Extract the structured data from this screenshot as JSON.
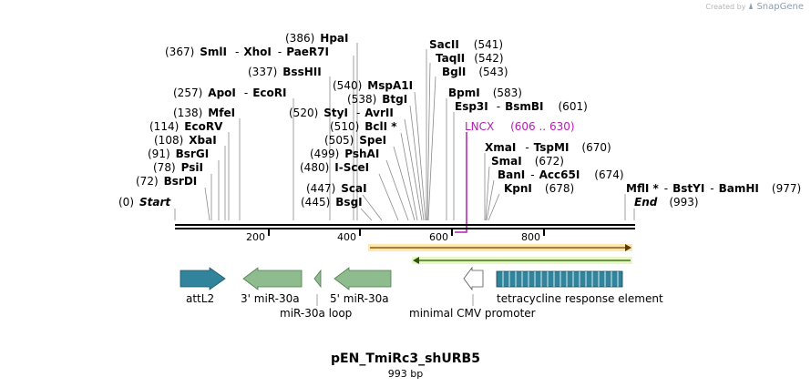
{
  "watermark": {
    "prefix": "Created by",
    "brand": "SnapGene"
  },
  "title": "pEN_TmiRc3_shURB5",
  "length_label": "993 bp",
  "sequence_length": 993,
  "axis_ticks": [
    "200",
    "400",
    "600",
    "800"
  ],
  "site_labels": [
    {
      "pos": "(386)",
      "name": "HpaI"
    },
    {
      "pos": "(367)",
      "name": "SmlI",
      "extra": [
        "XhoI",
        "PaeR7I"
      ]
    },
    {
      "pos": "(337)",
      "name": "BssHII"
    },
    {
      "pos": "(257)",
      "name": "ApoI",
      "extra": [
        "EcoRI"
      ]
    },
    {
      "pos": "(138)",
      "name": "MfeI"
    },
    {
      "pos": "(114)",
      "name": "EcoRV"
    },
    {
      "pos": "(108)",
      "name": "XbaI"
    },
    {
      "pos": "(91)",
      "name": "BsrGI"
    },
    {
      "pos": "(78)",
      "name": "PsiI"
    },
    {
      "pos": "(72)",
      "name": "BsrDI"
    },
    {
      "pos": "(0)",
      "name": "Start"
    },
    {
      "pos": "(540)",
      "name": "MspA1I"
    },
    {
      "pos": "(538)",
      "name": "BtgI"
    },
    {
      "pos": "(520)",
      "name": "StyI",
      "extra": [
        "AvrII"
      ]
    },
    {
      "pos": "(510)",
      "name": "BclI *"
    },
    {
      "pos": "(505)",
      "name": "SpeI"
    },
    {
      "pos": "(499)",
      "name": "PshAI"
    },
    {
      "pos": "(480)",
      "name": "I-SceI"
    },
    {
      "pos": "(447)",
      "name": "ScaI"
    },
    {
      "pos": "(445)",
      "name": "BsgI"
    },
    {
      "pos": "(541)",
      "name": "SacII"
    },
    {
      "pos": "(542)",
      "name": "TaqII"
    },
    {
      "pos": "(543)",
      "name": "BglI"
    },
    {
      "pos": "(583)",
      "name": "BpmI"
    },
    {
      "pos": "(601)",
      "name": "Esp3I",
      "extra": [
        "BsmBI"
      ]
    },
    {
      "pos": "(670)",
      "name": "XmaI",
      "extra": [
        "TspMI"
      ]
    },
    {
      "pos": "(672)",
      "name": "SmaI"
    },
    {
      "pos": "(674)",
      "name": "BanI",
      "extra": [
        "Acc65I"
      ]
    },
    {
      "pos": "(678)",
      "name": "KpnI"
    },
    {
      "pos": "(977)",
      "name": "MflI *",
      "extra": [
        "BstYI",
        "BamHI"
      ]
    },
    {
      "pos": "(993)",
      "name": "End"
    }
  ],
  "lncx": {
    "name": "LNCX",
    "range": "(606 .. 630)",
    "color": "#b41eb4"
  },
  "features": [
    {
      "name": "attL2",
      "color": "#31849b"
    },
    {
      "name": "3' miR-30a",
      "color": "#8fbc8f"
    },
    {
      "name": "miR-30a loop",
      "color": "#8fbc8f"
    },
    {
      "name": "5' miR-30a",
      "color": "#8fbc8f"
    },
    {
      "name": "minimal CMV promoter",
      "color": "#ffffff"
    },
    {
      "name": "tetracycline response element",
      "color": "#31849b"
    }
  ],
  "orf_colors": {
    "forward": "#f0a030",
    "reverse": "#7ac043"
  }
}
